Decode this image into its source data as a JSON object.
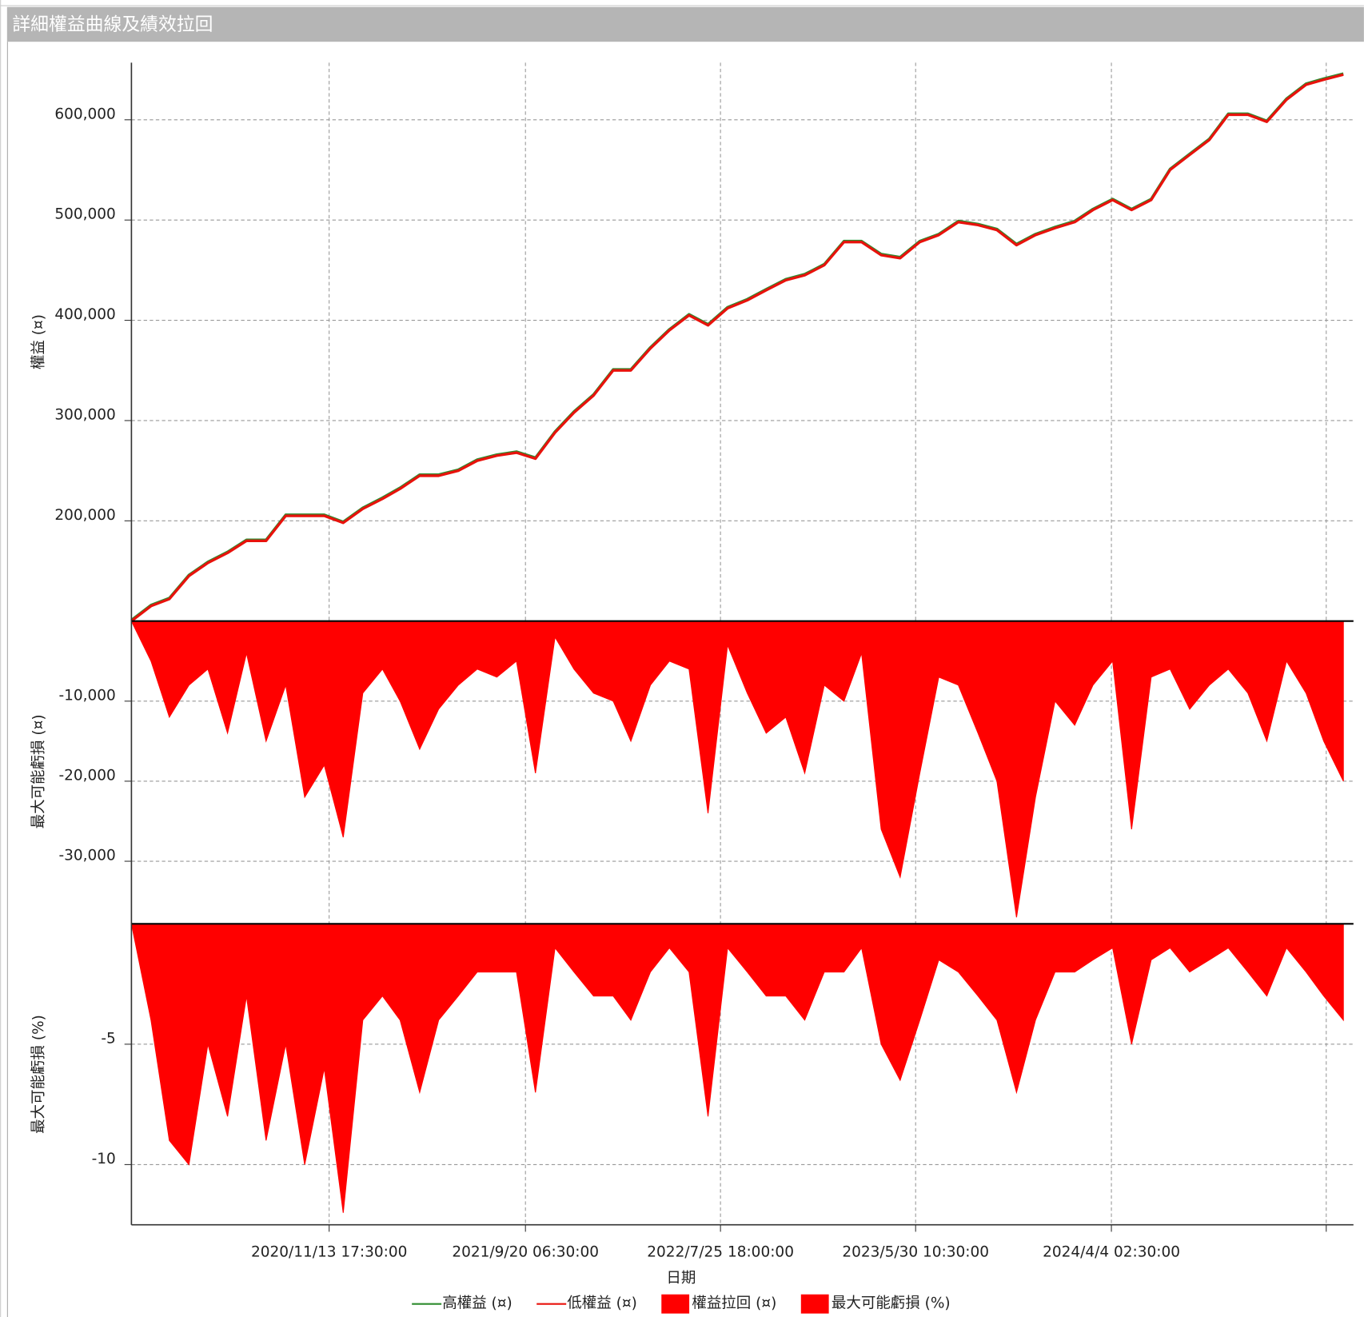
{
  "chart_data": {
    "type": "line",
    "title": "詳細權益曲線及績效拉回",
    "xlabel": "日期",
    "x": [
      "2020/1/6",
      "2020/2/6",
      "2020/3/6",
      "2020/4/6",
      "2020/5/6",
      "2020/6/6",
      "2020/7/6",
      "2020/8/6",
      "2020/9/6",
      "2020/10/6",
      "2020/11/6",
      "2020/12/6",
      "2021/1/6",
      "2021/2/6",
      "2021/3/6",
      "2021/4/6",
      "2021/5/6",
      "2021/6/6",
      "2021/7/6",
      "2021/8/6",
      "2021/9/6",
      "2021/10/6",
      "2021/11/6",
      "2021/12/6",
      "2022/1/6",
      "2022/2/6",
      "2022/3/6",
      "2022/4/6",
      "2022/5/6",
      "2022/6/6",
      "2022/7/6",
      "2022/8/6",
      "2022/9/6",
      "2022/10/6",
      "2022/11/6",
      "2022/12/6",
      "2023/1/6",
      "2023/2/6",
      "2023/3/6",
      "2023/4/6",
      "2023/5/6",
      "2023/6/6",
      "2023/7/6",
      "2023/8/6",
      "2023/9/6",
      "2023/10/6",
      "2023/11/6",
      "2023/12/6",
      "2024/1/6",
      "2024/2/6",
      "2024/3/6",
      "2024/4/6",
      "2024/5/6",
      "2024/6/6",
      "2024/7/6",
      "2024/8/6",
      "2024/9/6",
      "2024/10/6",
      "2024/11/6",
      "2024/12/6",
      "2025/1/6",
      "2025/2/6",
      "2025/3/6",
      "2025/4/6"
    ],
    "xlim": [
      "2020/1/6",
      "2025/4/22"
    ],
    "xticks": [
      "2020/11/13 17:30:00",
      "2021/9/20 06:30:00",
      "2022/7/25 18:00:00",
      "2023/5/30 10:30:00",
      "2024/4/4 02:30:00",
      {
        "value": "2025/3/9 22:30:00",
        "label": null
      }
    ],
    "grid": true,
    "panels": [
      {
        "type": "line",
        "ylabel": "權益 (¤)",
        "ylim": [
          100000,
          657000
        ],
        "yticks": [
          {
            "value": 200000,
            "label": "200,000"
          },
          {
            "value": 300000,
            "label": "300,000"
          },
          {
            "value": 400000,
            "label": "400,000"
          },
          {
            "value": 500000,
            "label": "500,000"
          },
          {
            "value": 600000,
            "label": "600,000"
          }
        ],
        "series": [
          {
            "name": "高權益 (¤)",
            "color": "#2e8b2e",
            "values": [
              101000,
              116000,
              123000,
              146000,
              159000,
              169000,
              181000,
              181000,
              206000,
              206000,
              206000,
              199000,
              213000,
              223000,
              233000,
              246000,
              246000,
              251000,
              261000,
              266000,
              269000,
              263000,
              289000,
              309000,
              326000,
              351000,
              351000,
              373000,
              391000,
              406000,
              396000,
              413000,
              421000,
              431000,
              441000,
              446000,
              456000,
              479000,
              479000,
              466000,
              463000,
              479000,
              486000,
              499000,
              496000,
              491000,
              476000,
              486000,
              493000,
              499000,
              511000,
              521000,
              511000,
              521000,
              551000,
              566000,
              581000,
              606000,
              606000,
              599000,
              621000,
              636000,
              641000,
              646000
            ]
          },
          {
            "name": "低權益 (¤)",
            "color": "#e8120c",
            "values": [
              100000,
              115000,
              122000,
              145000,
              158000,
              168000,
              180000,
              180000,
              205000,
              205000,
              205000,
              198000,
              212000,
              222000,
              232000,
              245000,
              245000,
              250000,
              260000,
              265000,
              268000,
              262000,
              288000,
              308000,
              325000,
              350000,
              350000,
              372000,
              390000,
              405000,
              395000,
              412000,
              420000,
              430000,
              440000,
              445000,
              455000,
              478000,
              478000,
              465000,
              462000,
              478000,
              485000,
              498000,
              495000,
              490000,
              475000,
              485000,
              492000,
              498000,
              510000,
              520000,
              510000,
              520000,
              550000,
              565000,
              580000,
              605000,
              605000,
              598000,
              620000,
              635000,
              640000,
              645000
            ]
          }
        ]
      },
      {
        "type": "area",
        "ylabel": "最大可能虧損 (¤)",
        "ylim": [
          -37600,
          0
        ],
        "yticks": [
          {
            "value": -10000,
            "label": "-10,000"
          },
          {
            "value": -20000,
            "label": "-20,000"
          },
          {
            "value": -30000,
            "label": "-30,000"
          }
        ],
        "series": [
          {
            "name": "權益拉回 (¤)",
            "color": "#ff0000",
            "values": [
              0,
              -5000,
              -12000,
              -8000,
              -6000,
              -14000,
              -4000,
              -15000,
              -8000,
              -22000,
              -18000,
              -27000,
              -9000,
              -6000,
              -10000,
              -16000,
              -11000,
              -8000,
              -6000,
              -7000,
              -5000,
              -19000,
              -2000,
              -6000,
              -9000,
              -10000,
              -15000,
              -8000,
              -5000,
              -6000,
              -24000,
              -3000,
              -9000,
              -14000,
              -12000,
              -19000,
              -8000,
              -10000,
              -4000,
              -26000,
              -32000,
              -19000,
              -7000,
              -8000,
              -14000,
              -20000,
              -37000,
              -22000,
              -10000,
              -13000,
              -8000,
              -5000,
              -26000,
              -7000,
              -6000,
              -11000,
              -8000,
              -6000,
              -9000,
              -15000,
              -5000,
              -9000,
              -15000,
              -20000
            ]
          }
        ]
      },
      {
        "type": "area",
        "ylabel": "最大可能虧損 (%)",
        "ylim": [
          -12.5,
          0
        ],
        "yticks": [
          -5,
          -10
        ],
        "series": [
          {
            "name": "最大可能虧損 (%)",
            "color": "#ff0000",
            "values": [
              0,
              -4,
              -9,
              -10,
              -5,
              -8,
              -3,
              -9,
              -5,
              -10,
              -6,
              -12,
              -4,
              -3,
              -4,
              -7,
              -4,
              -3,
              -2,
              -2,
              -2,
              -7,
              -1,
              -2,
              -3,
              -3,
              -4,
              -2,
              -1,
              -2,
              -8,
              -1,
              -2,
              -3,
              -3,
              -4,
              -2,
              -2,
              -1,
              -5,
              -6.5,
              -4,
              -1.5,
              -2,
              -3,
              -4,
              -7,
              -4,
              -2,
              -2,
              -1.5,
              -1,
              -5,
              -1.5,
              -1,
              -2,
              -1.5,
              -1,
              -2,
              -3,
              -1,
              -2,
              -3,
              -4
            ]
          }
        ]
      }
    ]
  }
}
